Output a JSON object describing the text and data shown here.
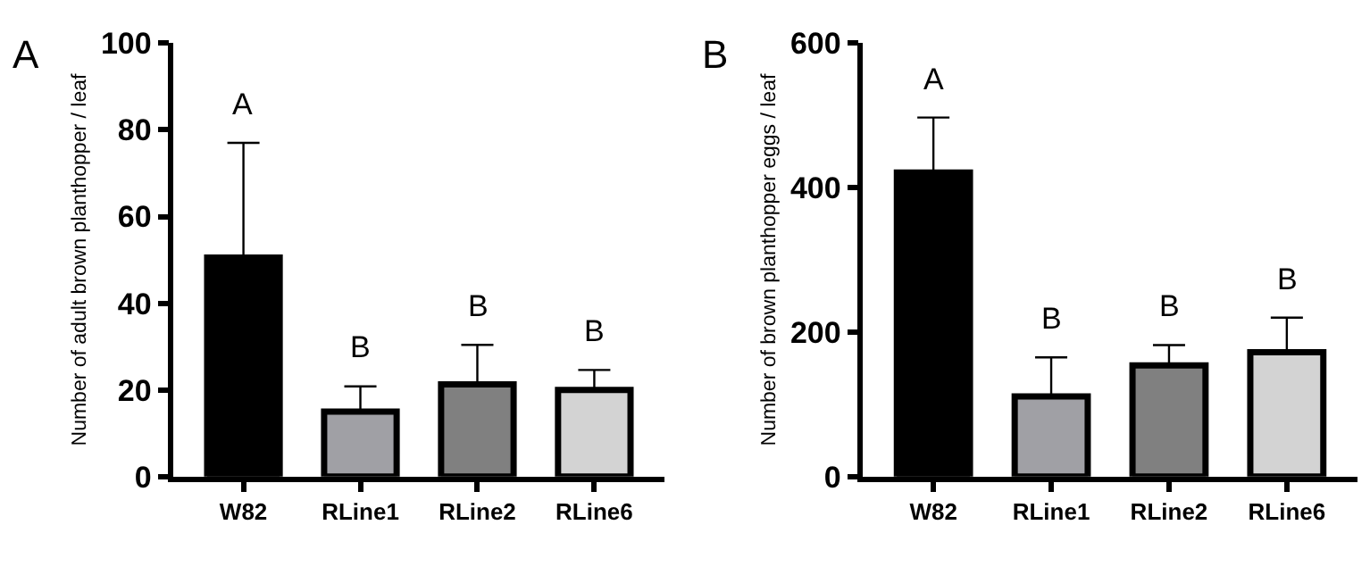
{
  "chart_data": [
    {
      "type": "bar",
      "title": "A",
      "ylabel": "Number of adult brown planthopper / leaf",
      "categories": [
        "W82",
        "RLine1",
        "RLine2",
        "RLine6"
      ],
      "values": [
        50.5,
        15,
        21.3,
        20
      ],
      "colors": [
        "#000000",
        "#a0a0a5",
        "#808080",
        "#d3d3d3"
      ],
      "errors": [
        [
          50.5,
          77
        ],
        [
          15,
          20.8
        ],
        [
          21.3,
          30.4
        ],
        [
          20,
          24.6
        ]
      ],
      "ylim": [
        0,
        100
      ],
      "yticks": [
        0,
        20,
        40,
        60,
        80,
        100
      ],
      "annotations": [
        {
          "text": "A",
          "x": "W82",
          "y": 77
        },
        {
          "text": "B",
          "x": "RLine1",
          "y": 20.8
        },
        {
          "text": "B",
          "x": "RLine2",
          "y": 30.4
        },
        {
          "text": "B",
          "x": "RLine6",
          "y": 24.6
        }
      ]
    },
    {
      "type": "bar",
      "title": "B",
      "ylabel": "Number of brown planthopper eggs / leaf",
      "categories": [
        "W82",
        "RLine1",
        "RLine2",
        "RLine6"
      ],
      "values": [
        421,
        111,
        154,
        172
      ],
      "colors": [
        "#000000",
        "#a0a0a5",
        "#808080",
        "#d3d3d3"
      ],
      "errors": [
        [
          421,
          497
        ],
        [
          111,
          165
        ],
        [
          154,
          182
        ],
        [
          172,
          220
        ]
      ],
      "ylim": [
        0,
        600
      ],
      "yticks": [
        0,
        200,
        400,
        600
      ],
      "annotations": [
        {
          "text": "A",
          "x": "W82",
          "y": 497
        },
        {
          "text": "B",
          "x": "RLine1",
          "y": 165
        },
        {
          "text": "B",
          "x": "RLine2",
          "y": 182
        },
        {
          "text": "B",
          "x": "RLine6",
          "y": 220
        }
      ]
    }
  ]
}
